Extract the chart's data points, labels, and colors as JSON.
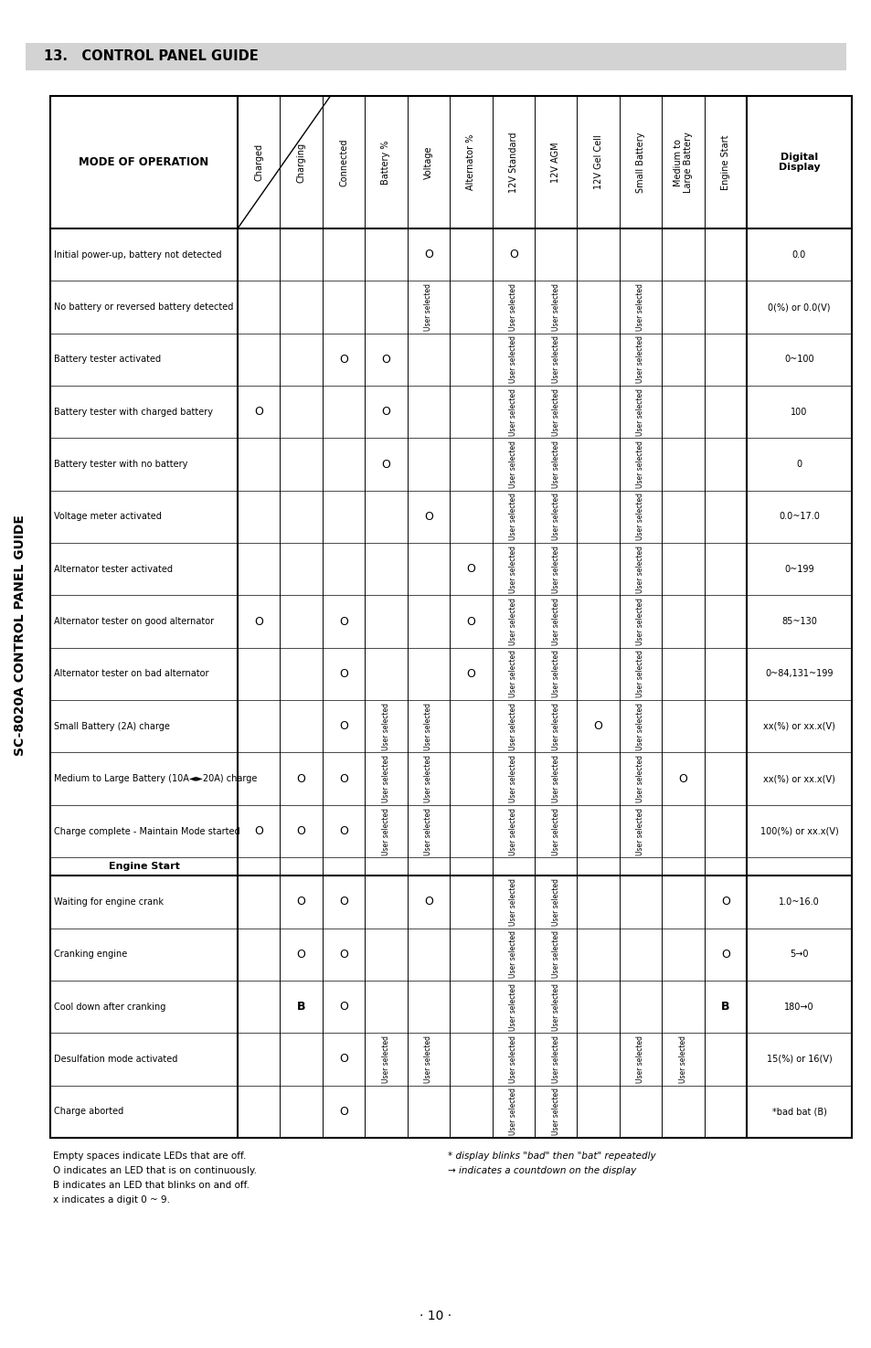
{
  "title_header": "13.   CONTROL PANEL GUIDE",
  "side_title": "SC-8020A CONTROL PANEL GUIDE",
  "table_title": "MODE OF OPERATION",
  "page_number": "· 10 ·",
  "col_headers": [
    "Charged",
    "Charging",
    "Connected",
    "Battery %",
    "Voltage",
    "Alternator %",
    "12V Standard",
    "12V AGM",
    "12V Gel Cell",
    "Small Battery",
    "Medium to\nLarge Battery",
    "Engine Start",
    "Digital\nDisplay"
  ],
  "rows": [
    {
      "mode": "Initial power-up, battery not detected",
      "cells": [
        "",
        "",
        "",
        "",
        "O",
        "",
        "O",
        "",
        "",
        "",
        "",
        "",
        "0.0"
      ]
    },
    {
      "mode": "No battery or reversed battery detected",
      "cells": [
        "",
        "",
        "",
        "",
        "User selected",
        "",
        "User selected",
        "User selected",
        "",
        "User selected",
        "",
        "",
        "0(%) or 0.0(V)"
      ]
    },
    {
      "mode": "Battery tester activated",
      "cells": [
        "",
        "",
        "O",
        "O",
        "",
        "",
        "User selected",
        "User selected",
        "",
        "User selected",
        "",
        "",
        "0~100"
      ]
    },
    {
      "mode": "Battery tester with charged battery",
      "cells": [
        "O",
        "",
        "",
        "O",
        "",
        "",
        "User selected",
        "User selected",
        "",
        "User selected",
        "",
        "",
        "100"
      ]
    },
    {
      "mode": "Battery tester with no battery",
      "cells": [
        "",
        "",
        "",
        "O",
        "",
        "",
        "User selected",
        "User selected",
        "",
        "User selected",
        "",
        "",
        "0"
      ]
    },
    {
      "mode": "Voltage meter activated",
      "cells": [
        "",
        "",
        "",
        "",
        "O",
        "",
        "User selected",
        "User selected",
        "",
        "User selected",
        "",
        "",
        "0.0~17.0"
      ]
    },
    {
      "mode": "Alternator tester activated",
      "cells": [
        "",
        "",
        "",
        "",
        "",
        "O",
        "User selected",
        "User selected",
        "",
        "User selected",
        "",
        "",
        "0~199"
      ]
    },
    {
      "mode": "Alternator tester on good alternator",
      "cells": [
        "O",
        "",
        "O",
        "",
        "",
        "O",
        "User selected",
        "User selected",
        "",
        "User selected",
        "",
        "",
        "85~130"
      ]
    },
    {
      "mode": "Alternator tester on bad alternator",
      "cells": [
        "",
        "",
        "O",
        "",
        "",
        "O",
        "User selected",
        "User selected",
        "",
        "User selected",
        "",
        "",
        "0~84,131~199"
      ]
    },
    {
      "mode": "Small Battery (2A) charge",
      "cells": [
        "",
        "",
        "O",
        "User selected",
        "User selected",
        "",
        "User selected",
        "User selected",
        "O",
        "User selected",
        "",
        "",
        "xx(%) or xx.x(V)"
      ]
    },
    {
      "mode": "Medium to Large Battery (10A◄►20A) charge",
      "cells": [
        "",
        "O",
        "O",
        "User selected",
        "User selected",
        "",
        "User selected",
        "User selected",
        "",
        "User selected",
        "O",
        "",
        "xx(%) or xx.x(V)"
      ]
    },
    {
      "mode": "Charge complete - Maintain Mode started",
      "cells": [
        "O",
        "O",
        "O",
        "User selected",
        "User selected",
        "",
        "User selected",
        "User selected",
        "",
        "User selected",
        "",
        "",
        "100(%) or xx.x(V)"
      ]
    },
    {
      "mode": "Engine Start",
      "cells": [
        "",
        "",
        "",
        "",
        "",
        "",
        "",
        "",
        "",
        "",
        "",
        "",
        ""
      ]
    },
    {
      "mode": "Waiting for engine crank",
      "cells": [
        "",
        "O",
        "O",
        "",
        "O",
        "",
        "User selected",
        "User selected",
        "",
        "",
        "",
        "O",
        "1.0~16.0"
      ]
    },
    {
      "mode": "Cranking engine",
      "cells": [
        "",
        "O",
        "O",
        "",
        "",
        "",
        "User selected",
        "User selected",
        "",
        "",
        "",
        "O",
        "5→0"
      ]
    },
    {
      "mode": "Cool down after cranking",
      "cells": [
        "",
        "B",
        "O",
        "",
        "",
        "",
        "User selected",
        "User selected",
        "",
        "",
        "",
        "B",
        "180→0"
      ]
    },
    {
      "mode": "Desulfation mode activated",
      "cells": [
        "",
        "",
        "O",
        "User selected",
        "User selected",
        "",
        "User selected",
        "User selected",
        "",
        "User selected",
        "User selected",
        "",
        "15(%) or 16(V)"
      ]
    },
    {
      "mode": "Charge aborted",
      "cells": [
        "",
        "",
        "O",
        "",
        "",
        "",
        "User selected",
        "User selected",
        "",
        "",
        "",
        "",
        "*bad bat (B)"
      ]
    }
  ],
  "footnotes_left": [
    "Empty spaces indicate LEDs that are off.",
    "O indicates an LED that is on continuously.",
    "B indicates an LED that blinks on and off.",
    "x indicates a digit 0 ~ 9."
  ],
  "footnotes_right": [
    "* display blinks \"bad\" then \"bat\" repeatedly",
    "→ indicates a countdown on the display"
  ],
  "bg_color": "#ffffff",
  "header_bg": "#d3d3d3",
  "font_color": "#000000"
}
